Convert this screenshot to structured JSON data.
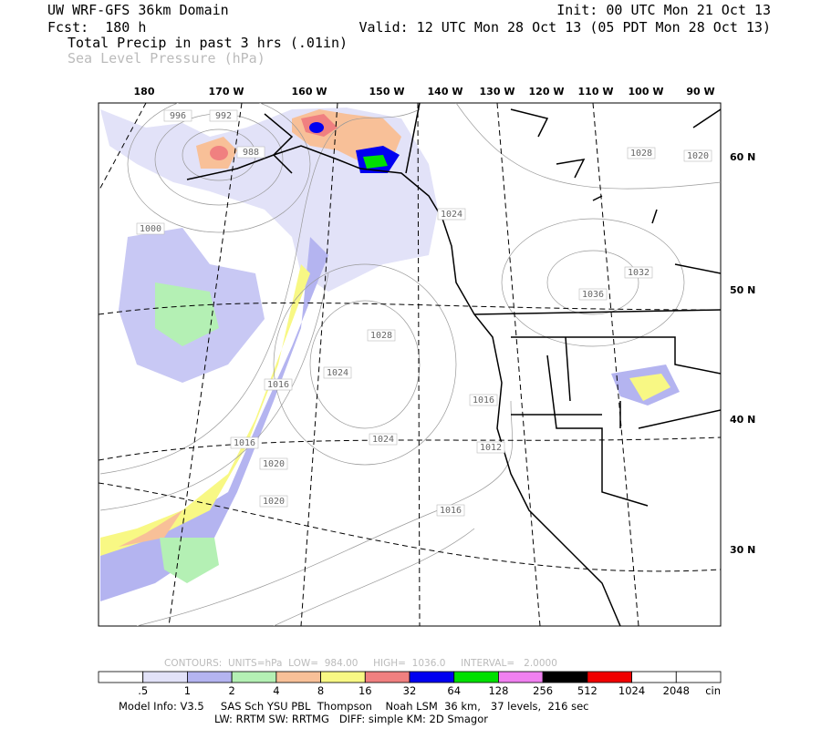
{
  "header": {
    "title": "UW WRF-GFS 36km Domain",
    "init": "Init: 00 UTC Mon 21 Oct 13",
    "forecast": "Fcst:  180 h",
    "valid": "Valid: 12 UTC Mon 28 Oct 13 (05 PDT Mon 28 Oct 13)",
    "field": "Total Precip in past 3 hrs (.01in)",
    "overlay": "Sea Level Pressure (hPa)"
  },
  "map": {
    "longitude_labels": [
      "180",
      "170 W",
      "160 W",
      "150 W",
      "140 W",
      "130 W",
      "120 W",
      "110 W",
      "100 W",
      "90 W"
    ],
    "latitude_labels": [
      "60 N",
      "50 N",
      "40 N",
      "30 N"
    ],
    "contour_labels": [
      "996",
      "992",
      "988",
      "1000",
      "1016",
      "1016",
      "1020",
      "1020",
      "1024",
      "1028",
      "1024",
      "1024",
      "1028",
      "1032",
      "1036",
      "1020",
      "1016",
      "1012",
      "1016"
    ]
  },
  "contour_info": "CONTOURS:  UNITS=hPa  LOW=  984.00     HIGH=  1036.0     INTERVAL=   2.0000",
  "colorbar": {
    "labels": [
      ".5",
      "1",
      "2",
      "4",
      "8",
      "16",
      "32",
      "64",
      "128",
      "256",
      "512",
      "1024",
      "2048",
      "cin"
    ],
    "colors": [
      "#ffffff",
      "#e2e2f8",
      "#b4b4f0",
      "#b4f0b4",
      "#f8c098",
      "#f8f884",
      "#f08080",
      "#0000f0",
      "#00e000",
      "#f080f0",
      "#000000",
      "#f00000",
      "#ffffff",
      "#ffffff"
    ]
  },
  "footer": {
    "line1": "Model Info: V3.5     SAS Sch YSU PBL  Thompson    Noah LSM  36 km,   37 levels,  216 sec",
    "line2": "LW: RRTM SW: RRTMG   DIFF: simple KM: 2D Smagor"
  }
}
